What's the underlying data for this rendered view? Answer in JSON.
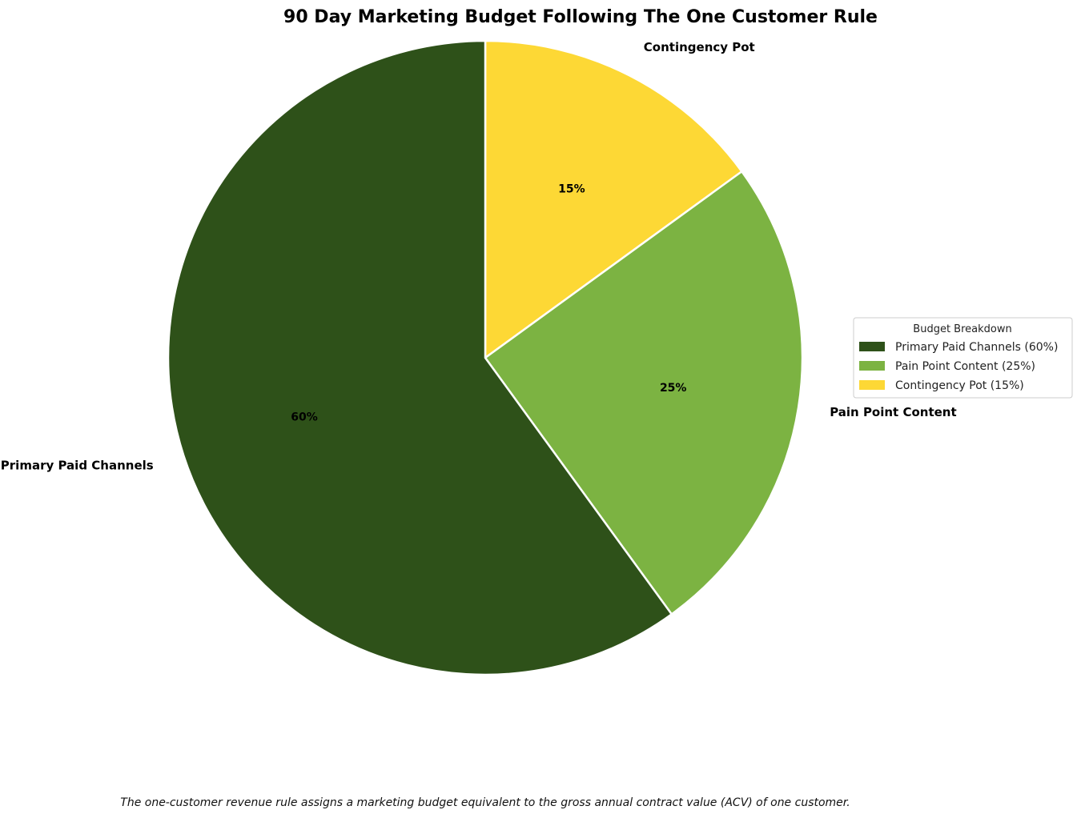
{
  "chart_data": {
    "type": "pie",
    "title": "90 Day Marketing Budget Following The One Customer Rule",
    "categories": [
      "Contingency Pot",
      "Pain Point Content",
      "Primary Paid Channels"
    ],
    "values": [
      15,
      25,
      60
    ],
    "percent_labels": [
      "15%",
      "25%",
      "60%"
    ],
    "colors": [
      "#fdd835",
      "#7cb342",
      "#2e5119"
    ],
    "edge_color": "#ffffff",
    "start_angle": "12 o'clock",
    "direction": "clockwise",
    "legend": {
      "title": "Budget Breakdown",
      "placement": "right",
      "entries": [
        {
          "label": "Primary Paid Channels (60%)",
          "color": "#2e5119"
        },
        {
          "label": "Pain Point Content (25%)",
          "color": "#7cb342"
        },
        {
          "label": "Contingency Pot (15%)",
          "color": "#fdd835"
        }
      ]
    },
    "footnote": "The one-customer revenue rule assigns a marketing budget equivalent to the gross annual contract value (ACV) of one customer."
  }
}
